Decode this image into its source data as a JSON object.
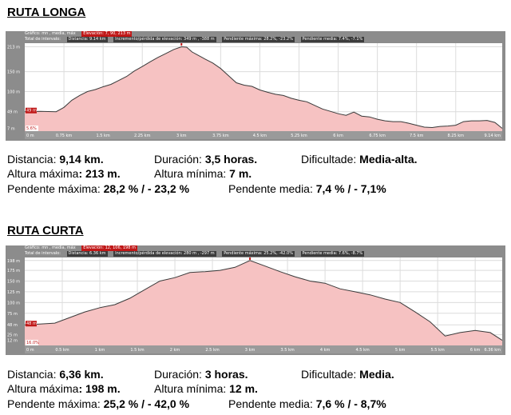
{
  "routes": [
    {
      "title": "RUTA LONGA",
      "header": {
        "row1": [
          "Gráfico: mn , media, máx",
          "Elevación: 7, 90, 213 m"
        ],
        "row2": [
          "Total de intervalo:",
          "Distancia: 9.14 km",
          "Incremento/pérdida de elevación: 349 m , -388 m",
          "Pendiente máxima: 28.2%, -23.2%",
          "Pendiente media: 7.4%, -7.1%"
        ]
      },
      "markers": {
        "top": "213 m",
        "mid": "49 m",
        "bottom": "5.6%",
        "end": "9.14 km"
      },
      "stats": {
        "distance_label": "Distancia:",
        "distance_value": "9,14 km.",
        "duration_label": "Duración:",
        "duration_value": "3,5 horas.",
        "difficulty_label": "Dificultade:",
        "difficulty_value": "Media-alta.",
        "max_alt_label": "Altura máxima",
        "max_alt_value": ": 213 m.",
        "min_alt_label": "Altura mínima:",
        "min_alt_value": "7 m.",
        "max_slope_label": "Pendente máxima:",
        "max_slope_value": "28,2 % / - 23,2 %",
        "avg_slope_label": "Pendente media:",
        "avg_slope_value": "7,4 % / - 7,1%"
      },
      "chart_data": {
        "type": "area",
        "title": "",
        "xlabel": "",
        "ylabel": "",
        "xlim": [
          0,
          9.14
        ],
        "ylim": [
          0,
          222
        ],
        "x_ticks": [
          0,
          0.75,
          1.5,
          2.25,
          3,
          3.75,
          4.5,
          5.25,
          6,
          6.75,
          7.5,
          8.25,
          9.14
        ],
        "x_tick_labels": [
          "0 m",
          "0.75 km",
          "1.5 km",
          "2.25 km",
          "3 km",
          "3.75 km",
          "4.5 km",
          "5.25 km",
          "6 km",
          "6.75 km",
          "7.5 km",
          "8.25 km",
          "9.14 km"
        ],
        "y_ticks": [
          7,
          49,
          100,
          150,
          213
        ],
        "y_tick_labels": [
          "7 m",
          "49 m",
          "100 m",
          "150 m",
          "213 m"
        ],
        "grid": true,
        "series": [
          {
            "x": [
              0,
              0.3,
              0.6,
              0.75,
              0.9,
              1.05,
              1.2,
              1.35,
              1.5,
              1.65,
              1.8,
              1.95,
              2.1,
              2.25,
              2.4,
              2.55,
              2.7,
              2.85,
              3.0,
              3.1,
              3.2,
              3.3,
              3.45,
              3.6,
              3.75,
              3.9,
              4.05,
              4.2,
              4.35,
              4.5,
              4.65,
              4.8,
              4.95,
              5.1,
              5.25,
              5.4,
              5.55,
              5.7,
              5.85,
              6.0,
              6.15,
              6.3,
              6.45,
              6.6,
              6.75,
              6.9,
              7.05,
              7.2,
              7.35,
              7.5,
              7.65,
              7.8,
              7.95,
              8.1,
              8.25,
              8.4,
              8.55,
              8.7,
              8.85,
              9.0,
              9.14
            ],
            "y": [
              49,
              50,
              49,
              60,
              78,
              90,
              100,
              105,
              112,
              118,
              128,
              138,
              152,
              163,
              175,
              186,
              196,
              206,
              213,
              212,
              200,
              193,
              182,
              172,
              158,
              140,
              122,
              116,
              113,
              104,
              98,
              93,
              90,
              83,
              78,
              74,
              65,
              56,
              50,
              44,
              40,
              48,
              38,
              36,
              30,
              26,
              24,
              24,
              20,
              15,
              10,
              9,
              12,
              13,
              15,
              24,
              26,
              26,
              27,
              22,
              7
            ]
          }
        ]
      }
    },
    {
      "title": "RUTA CURTA",
      "header": {
        "row1": [
          "Gráfico: mn , media, máx",
          "Elevación: 12, 106, 198 m"
        ],
        "row2": [
          "Total de intervalo:",
          "Distancia: 6.36 km",
          "Incremento/pérdida de elevación: 280 m , -297 m",
          "Pendiente máxima: 25.2%, -42.0%",
          "Pendiente media: 7.6%, -8.7%"
        ]
      },
      "markers": {
        "top": "198 m",
        "mid": "48 m",
        "bottom": "16.0%",
        "end": "6.36 km"
      },
      "stats": {
        "distance_label": "Distancia:",
        "distance_value": "6,36 km.",
        "duration_label": "Duración:",
        "duration_value": "3 horas.",
        "difficulty_label": "Dificultade:",
        "difficulty_value": "Media.",
        "max_alt_label": "Altura máxima",
        "max_alt_value": ": 198 m.",
        "min_alt_label": "Altura mínima:",
        "min_alt_value": "12 m.",
        "max_slope_label": "Pendente máxima:",
        "max_slope_value": "25,2 % / - 42,0 %",
        "avg_slope_label": "Pendente media:",
        "avg_slope_value": "7,6 % / - 8,7%"
      },
      "chart_data": {
        "type": "area",
        "title": "",
        "xlabel": "",
        "ylabel": "",
        "xlim": [
          0,
          6.36
        ],
        "ylim": [
          0,
          205
        ],
        "x_ticks": [
          0,
          0.5,
          1,
          1.5,
          2,
          2.5,
          3,
          3.5,
          4,
          4.5,
          5,
          5.5,
          6,
          6.36
        ],
        "x_tick_labels": [
          "0 m",
          "0.5 km",
          "1 km",
          "1.5 km",
          "2 km",
          "2.5 km",
          "3 km",
          "3.5 km",
          "4 km",
          "4.5 km",
          "5 km",
          "5.5 km",
          "6 km",
          "6.36 km"
        ],
        "y_ticks": [
          12,
          25,
          48,
          75,
          100,
          125,
          150,
          175,
          198
        ],
        "y_tick_labels": [
          "12 m",
          "25 m",
          "48 m",
          "75 m",
          "100 m",
          "125 m",
          "150 m",
          "175 m",
          "198 m"
        ],
        "grid": true,
        "series": [
          {
            "x": [
              0,
              0.2,
              0.4,
              0.6,
              0.8,
              1.0,
              1.2,
              1.4,
              1.6,
              1.8,
              2.0,
              2.2,
              2.4,
              2.6,
              2.8,
              3.0,
              3.2,
              3.4,
              3.6,
              3.8,
              4.0,
              4.2,
              4.4,
              4.6,
              4.8,
              5.0,
              5.2,
              5.4,
              5.6,
              5.8,
              6.0,
              6.2,
              6.36
            ],
            "y": [
              48,
              50,
              52,
              65,
              78,
              88,
              95,
              110,
              130,
              150,
              158,
              170,
              172,
              175,
              182,
              198,
              185,
              172,
              160,
              150,
              145,
              132,
              125,
              118,
              108,
              100,
              78,
              55,
              22,
              30,
              35,
              30,
              12
            ]
          }
        ]
      }
    }
  ]
}
